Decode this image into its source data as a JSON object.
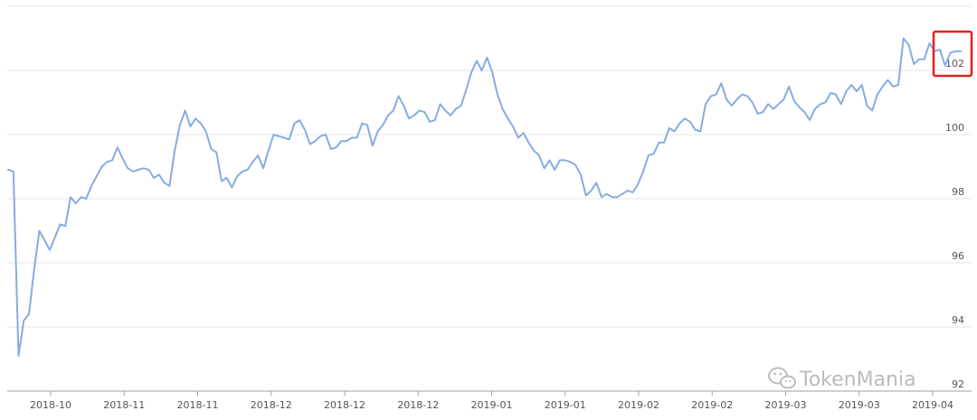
{
  "chart_data": {
    "type": "line",
    "title": "",
    "xlabel": "",
    "ylabel": "",
    "ylim": [
      92,
      104
    ],
    "yticks": [
      92,
      94,
      96,
      98,
      100,
      102
    ],
    "x_tick_labels": [
      "2018-10",
      "2018-11",
      "2018-11",
      "2018-12",
      "2018-12",
      "2018-12",
      "2019-01",
      "2019-01",
      "2019-02",
      "2019-02",
      "2019-03",
      "2019-03",
      "2019-04"
    ],
    "grid": true,
    "series": [
      {
        "color": "#87ace0",
        "values": [
          98.9,
          98.85,
          93.1,
          94.2,
          94.4,
          95.8,
          97.0,
          96.7,
          96.4,
          96.8,
          97.2,
          97.15,
          98.05,
          97.85,
          98.05,
          98.0,
          98.4,
          98.7,
          99.0,
          99.15,
          99.2,
          99.6,
          99.25,
          98.95,
          98.85,
          98.9,
          98.95,
          98.9,
          98.65,
          98.75,
          98.5,
          98.4,
          99.5,
          100.3,
          100.75,
          100.25,
          100.5,
          100.35,
          100.1,
          99.55,
          99.45,
          98.55,
          98.65,
          98.35,
          98.7,
          98.85,
          98.9,
          99.15,
          99.35,
          98.95,
          99.5,
          100.0,
          99.95,
          99.9,
          99.85,
          100.35,
          100.45,
          100.15,
          99.7,
          99.8,
          99.95,
          100.0,
          99.55,
          99.6,
          99.8,
          99.8,
          99.9,
          99.9,
          100.35,
          100.3,
          99.65,
          100.1,
          100.3,
          100.6,
          100.75,
          101.2,
          100.9,
          100.5,
          100.6,
          100.75,
          100.7,
          100.4,
          100.45,
          100.95,
          100.75,
          100.6,
          100.8,
          100.9,
          101.4,
          101.95,
          102.3,
          102.0,
          102.4,
          101.95,
          101.25,
          100.8,
          100.5,
          100.25,
          99.9,
          100.05,
          99.75,
          99.5,
          99.35,
          98.95,
          99.2,
          98.9,
          99.2,
          99.2,
          99.15,
          99.05,
          98.75,
          98.1,
          98.25,
          98.5,
          98.05,
          98.15,
          98.05,
          98.05,
          98.15,
          98.25,
          98.2,
          98.45,
          98.85,
          99.35,
          99.4,
          99.75,
          99.75,
          100.2,
          100.1,
          100.35,
          100.5,
          100.4,
          100.15,
          100.1,
          100.95,
          101.2,
          101.25,
          101.6,
          101.1,
          100.9,
          101.1,
          101.25,
          101.2,
          101.0,
          100.65,
          100.7,
          100.95,
          100.8,
          100.95,
          101.1,
          101.5,
          101.05,
          100.85,
          100.7,
          100.45,
          100.8,
          100.95,
          101.0,
          101.3,
          101.25,
          100.95,
          101.35,
          101.55,
          101.35,
          101.55,
          100.9,
          100.75,
          101.25,
          101.5,
          101.7,
          101.5,
          101.55,
          103.0,
          102.8,
          102.2,
          102.35,
          102.35,
          102.85,
          102.6,
          102.65,
          102.15,
          102.55,
          102.6,
          102.6
        ]
      }
    ]
  },
  "watermark": {
    "text": "TokenMania",
    "icon": "wechat-icon"
  },
  "highlight": {
    "color": "#e02020",
    "label": "102"
  }
}
